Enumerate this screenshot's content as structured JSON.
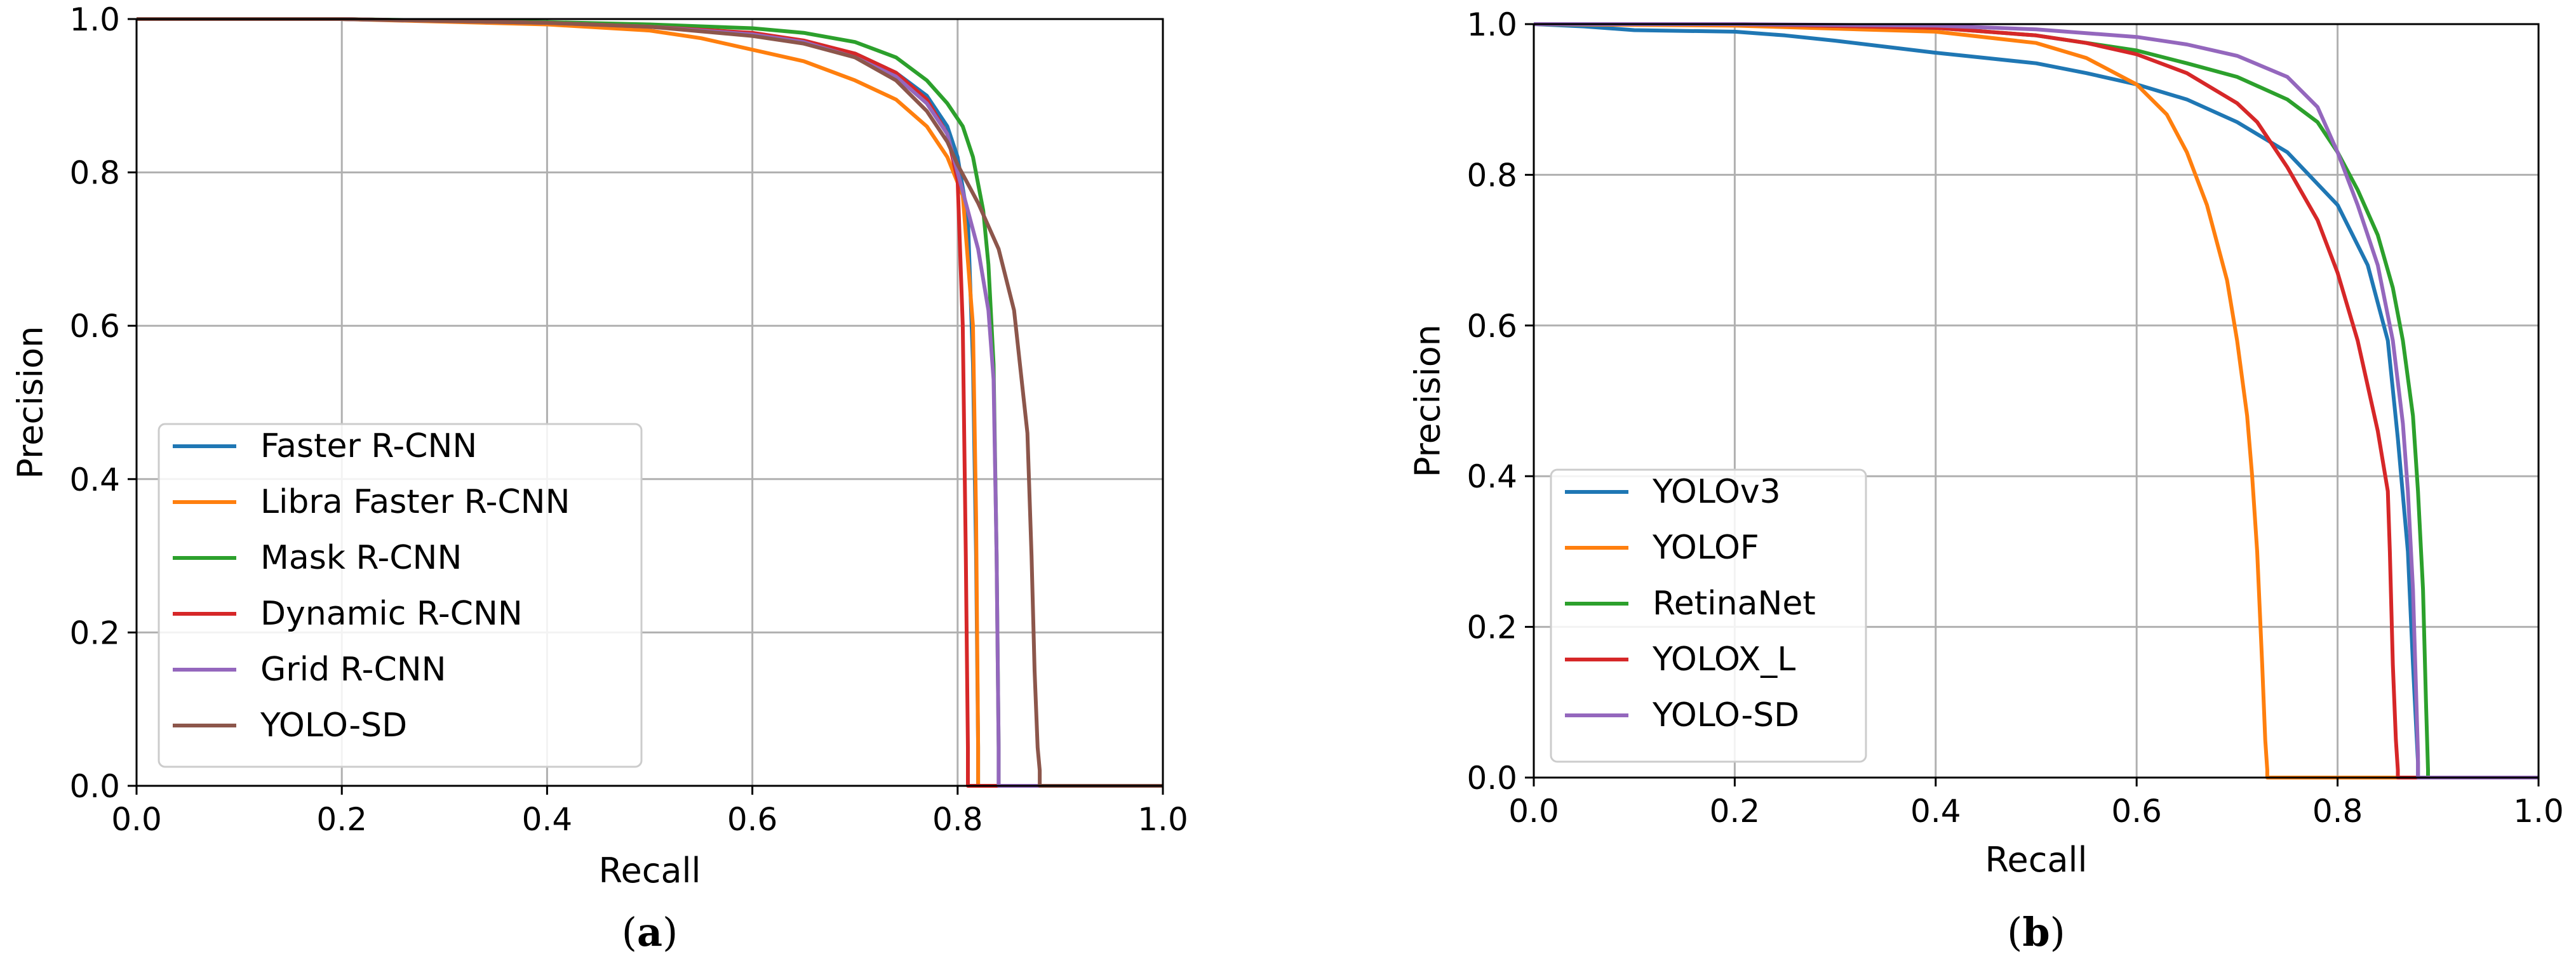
{
  "chart_data": [
    {
      "type": "line",
      "panel": "a",
      "caption_letter": "a",
      "xlabel": "Recall",
      "ylabel": "Precision",
      "xlim": [
        0.0,
        1.0
      ],
      "ylim": [
        0.0,
        1.0
      ],
      "xticks": [
        "0.0",
        "0.2",
        "0.4",
        "0.6",
        "0.8",
        "1.0"
      ],
      "yticks": [
        "0.0",
        "0.2",
        "0.4",
        "0.6",
        "0.8",
        "1.0"
      ],
      "grid": true,
      "legend_position": "lower-left",
      "series": [
        {
          "name": "Faster R-CNN",
          "color": "#1f77b4",
          "x": [
            0,
            0.2,
            0.4,
            0.5,
            0.6,
            0.65,
            0.7,
            0.74,
            0.77,
            0.79,
            0.8,
            0.81,
            0.815,
            0.818,
            0.82,
            0.82,
            1.0
          ],
          "y": [
            1.0,
            1.0,
            0.995,
            0.99,
            0.98,
            0.97,
            0.955,
            0.93,
            0.9,
            0.86,
            0.82,
            0.74,
            0.55,
            0.3,
            0.05,
            0,
            0
          ]
        },
        {
          "name": "Libra Faster R-CNN",
          "color": "#ff7f0e",
          "x": [
            0,
            0.2,
            0.4,
            0.5,
            0.55,
            0.6,
            0.65,
            0.7,
            0.74,
            0.77,
            0.79,
            0.805,
            0.815,
            0.818,
            0.82,
            0.82,
            1.0
          ],
          "y": [
            1.0,
            1.0,
            0.993,
            0.985,
            0.975,
            0.96,
            0.945,
            0.92,
            0.895,
            0.86,
            0.82,
            0.77,
            0.6,
            0.35,
            0.05,
            0,
            0
          ]
        },
        {
          "name": "Mask R-CNN",
          "color": "#2ca02c",
          "x": [
            0,
            0.2,
            0.4,
            0.5,
            0.6,
            0.65,
            0.7,
            0.74,
            0.77,
            0.79,
            0.805,
            0.815,
            0.825,
            0.83,
            0.835,
            0.838,
            0.84,
            0.84,
            1.0
          ],
          "y": [
            1.0,
            1.0,
            0.996,
            0.993,
            0.988,
            0.982,
            0.97,
            0.95,
            0.92,
            0.89,
            0.86,
            0.82,
            0.75,
            0.68,
            0.55,
            0.3,
            0.05,
            0,
            0
          ]
        },
        {
          "name": "Dynamic R-CNN",
          "color": "#d62728",
          "x": [
            0,
            0.2,
            0.4,
            0.5,
            0.6,
            0.65,
            0.7,
            0.74,
            0.77,
            0.79,
            0.8,
            0.805,
            0.808,
            0.81,
            0.81,
            1.0
          ],
          "y": [
            1.0,
            1.0,
            0.995,
            0.99,
            0.982,
            0.972,
            0.955,
            0.93,
            0.895,
            0.85,
            0.79,
            0.6,
            0.3,
            0.05,
            0,
            0
          ]
        },
        {
          "name": "Grid R-CNN",
          "color": "#9467bd",
          "x": [
            0,
            0.2,
            0.4,
            0.5,
            0.6,
            0.65,
            0.7,
            0.74,
            0.77,
            0.79,
            0.8,
            0.81,
            0.82,
            0.83,
            0.835,
            0.838,
            0.84,
            0.84,
            1.0
          ],
          "y": [
            1.0,
            1.0,
            0.995,
            0.99,
            0.98,
            0.97,
            0.95,
            0.925,
            0.89,
            0.85,
            0.8,
            0.75,
            0.7,
            0.62,
            0.53,
            0.3,
            0.05,
            0,
            0
          ]
        },
        {
          "name": "YOLO-SD",
          "color": "#8c564b",
          "x": [
            0,
            0.2,
            0.4,
            0.5,
            0.6,
            0.65,
            0.7,
            0.74,
            0.77,
            0.79,
            0.8,
            0.82,
            0.84,
            0.855,
            0.868,
            0.872,
            0.875,
            0.878,
            0.88,
            0.88,
            1.0
          ],
          "y": [
            1.0,
            1.0,
            0.995,
            0.99,
            0.978,
            0.968,
            0.95,
            0.92,
            0.88,
            0.84,
            0.81,
            0.76,
            0.7,
            0.62,
            0.46,
            0.3,
            0.15,
            0.05,
            0.02,
            0,
            0
          ]
        }
      ]
    },
    {
      "type": "line",
      "panel": "b",
      "caption_letter": "b",
      "xlabel": "Recall",
      "ylabel": "Precision",
      "xlim": [
        0.0,
        1.0
      ],
      "ylim": [
        0.0,
        1.0
      ],
      "xticks": [
        "0.0",
        "0.2",
        "0.4",
        "0.6",
        "0.8",
        "1.0"
      ],
      "yticks": [
        "0.0",
        "0.2",
        "0.4",
        "0.6",
        "0.8",
        "1.0"
      ],
      "grid": true,
      "legend_position": "lower-left",
      "series": [
        {
          "name": "YOLOv3",
          "color": "#1f77b4",
          "x": [
            0,
            0.05,
            0.1,
            0.2,
            0.25,
            0.3,
            0.35,
            0.4,
            0.45,
            0.5,
            0.55,
            0.6,
            0.65,
            0.7,
            0.75,
            0.8,
            0.83,
            0.85,
            0.86,
            0.87,
            0.875,
            0.88,
            0.88,
            1.0
          ],
          "y": [
            1.0,
            0.997,
            0.992,
            0.99,
            0.985,
            0.978,
            0.97,
            0.962,
            0.955,
            0.948,
            0.935,
            0.92,
            0.9,
            0.87,
            0.83,
            0.76,
            0.68,
            0.58,
            0.45,
            0.3,
            0.15,
            0.02,
            0,
            0
          ]
        },
        {
          "name": "YOLOF",
          "color": "#ff7f0e",
          "x": [
            0,
            0.2,
            0.4,
            0.5,
            0.55,
            0.6,
            0.63,
            0.65,
            0.67,
            0.69,
            0.7,
            0.71,
            0.715,
            0.72,
            0.725,
            0.728,
            0.73,
            0.73,
            1.0
          ],
          "y": [
            1.0,
            0.998,
            0.99,
            0.975,
            0.955,
            0.92,
            0.88,
            0.83,
            0.76,
            0.66,
            0.58,
            0.48,
            0.4,
            0.3,
            0.15,
            0.05,
            0.01,
            0,
            0
          ]
        },
        {
          "name": "RetinaNet",
          "color": "#2ca02c",
          "x": [
            0,
            0.2,
            0.4,
            0.5,
            0.6,
            0.65,
            0.7,
            0.75,
            0.78,
            0.8,
            0.82,
            0.84,
            0.855,
            0.865,
            0.875,
            0.88,
            0.885,
            0.888,
            0.89,
            0.89,
            1.0
          ],
          "y": [
            1.0,
            1.0,
            0.995,
            0.985,
            0.965,
            0.948,
            0.93,
            0.9,
            0.87,
            0.83,
            0.78,
            0.72,
            0.65,
            0.58,
            0.48,
            0.38,
            0.25,
            0.1,
            0.01,
            0,
            0
          ]
        },
        {
          "name": "YOLOX_L",
          "color": "#d62728",
          "x": [
            0,
            0.2,
            0.4,
            0.5,
            0.55,
            0.6,
            0.65,
            0.7,
            0.72,
            0.75,
            0.78,
            0.8,
            0.82,
            0.84,
            0.85,
            0.852,
            0.855,
            0.858,
            0.86,
            0.86,
            1.0
          ],
          "y": [
            1.0,
            1.0,
            0.995,
            0.985,
            0.975,
            0.96,
            0.935,
            0.895,
            0.87,
            0.81,
            0.74,
            0.67,
            0.58,
            0.46,
            0.38,
            0.3,
            0.15,
            0.05,
            0.01,
            0,
            0
          ]
        },
        {
          "name": "YOLO-SD",
          "color": "#9467bd",
          "x": [
            0,
            0.2,
            0.4,
            0.5,
            0.6,
            0.65,
            0.7,
            0.75,
            0.78,
            0.8,
            0.82,
            0.84,
            0.855,
            0.865,
            0.87,
            0.875,
            0.878,
            0.88,
            0.88,
            1.0
          ],
          "y": [
            1.0,
            1.0,
            0.998,
            0.993,
            0.983,
            0.973,
            0.958,
            0.93,
            0.89,
            0.83,
            0.76,
            0.68,
            0.58,
            0.47,
            0.38,
            0.25,
            0.12,
            0.03,
            0,
            0
          ]
        }
      ]
    }
  ]
}
